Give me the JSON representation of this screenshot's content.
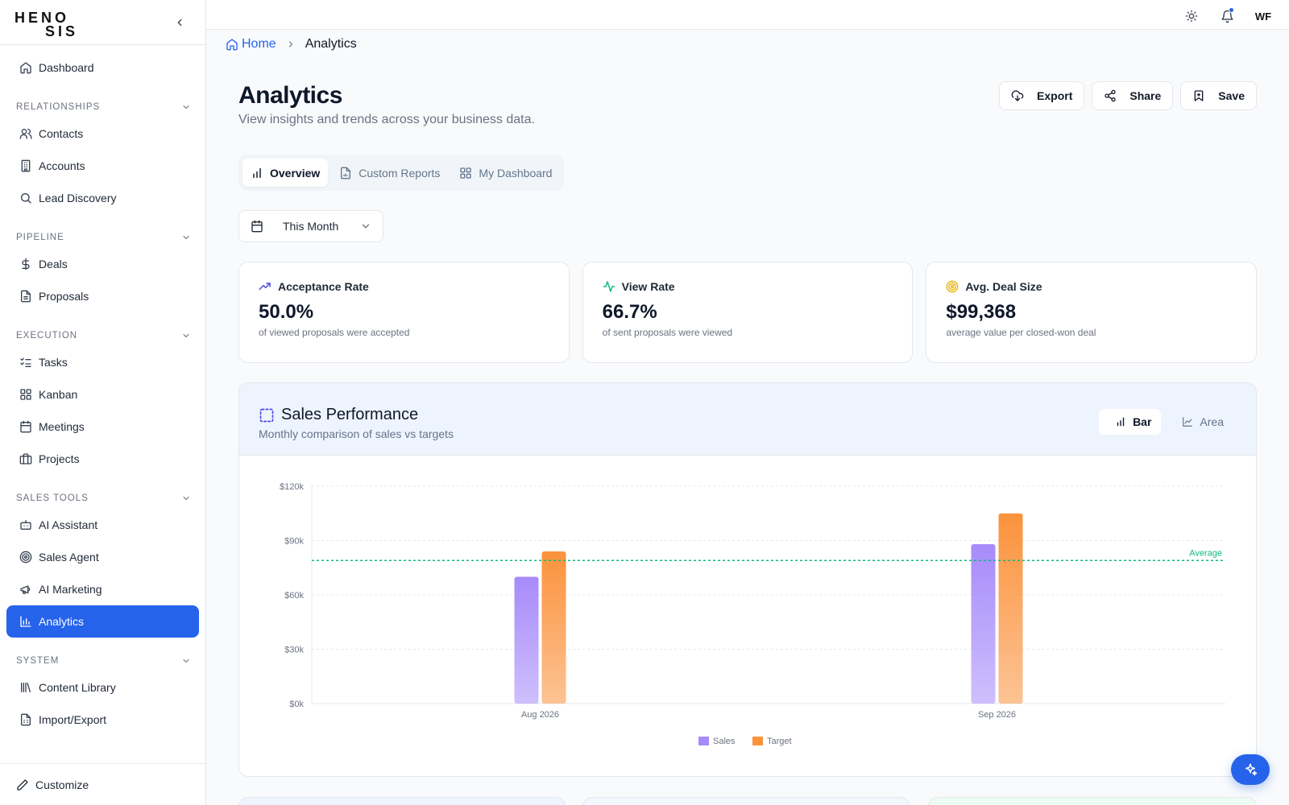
{
  "app": {
    "logo_line1": "HENO",
    "logo_line2": "SIS",
    "brand_color": "#1f5fd6",
    "accent": "#2563eb"
  },
  "sidebar": {
    "dashboard": "Dashboard",
    "sections": {
      "relationships": "RELATIONSHIPS",
      "pipeline": "PIPELINE",
      "execution": "EXECUTION",
      "sales_tools": "SALES TOOLS",
      "system": "SYSTEM"
    },
    "items": {
      "contacts": "Contacts",
      "accounts": "Accounts",
      "lead_discovery": "Lead Discovery",
      "deals": "Deals",
      "proposals": "Proposals",
      "tasks": "Tasks",
      "kanban": "Kanban",
      "meetings": "Meetings",
      "projects": "Projects",
      "ai_assistant": "AI Assistant",
      "sales_agent": "Sales Agent",
      "ai_marketing": "AI Marketing",
      "analytics": "Analytics",
      "content_library": "Content Library",
      "import_export": "Import/Export"
    },
    "customize": "Customize",
    "active_item": "Analytics"
  },
  "topbar": {
    "avatar_initials": "WF",
    "icons": [
      "sun-icon",
      "bell-icon"
    ]
  },
  "breadcrumb": {
    "home": "Home",
    "current": "Analytics"
  },
  "page": {
    "title": "Analytics",
    "subtitle": "View insights and trends across your business data."
  },
  "actions": {
    "export": "Export",
    "share": "Share",
    "save": "Save"
  },
  "tabs": {
    "overview": "Overview",
    "custom_reports": "Custom Reports",
    "my_dashboard": "My Dashboard",
    "active": "Overview"
  },
  "date_filter": {
    "value": "This Month"
  },
  "kpis": [
    {
      "label": "Acceptance Rate",
      "value": "50.0%",
      "note": "of viewed proposals were accepted",
      "icon": "trending-up-icon",
      "color": "#4f46e5"
    },
    {
      "label": "View Rate",
      "value": "66.7%",
      "note": "of sent proposals were viewed",
      "icon": "activity-icon",
      "color": "#10b981"
    },
    {
      "label": "Avg. Deal Size",
      "value": "$99,368",
      "note": "average value per closed-won deal",
      "icon": "target-icon",
      "color": "#eab308"
    }
  ],
  "chart": {
    "title": "Sales Performance",
    "subtitle": "Monthly comparison of sales vs targets",
    "toggle": {
      "bar": "Bar",
      "area": "Area",
      "active": "Bar"
    }
  },
  "chart_data": {
    "type": "bar",
    "categories": [
      "Aug 2026",
      "Sep 2026"
    ],
    "series": [
      {
        "name": "Sales",
        "values": [
          70000,
          88000
        ],
        "color": "#a78bfa"
      },
      {
        "name": "Target",
        "values": [
          84000,
          105000
        ],
        "color": "#fb923c"
      }
    ],
    "ylim": [
      0,
      120000
    ],
    "yticks": [
      "$0k",
      "$30k",
      "$60k",
      "$90k",
      "$120k"
    ],
    "ytick_values": [
      0,
      30000,
      60000,
      90000,
      120000
    ],
    "reference_line": {
      "label": "Average",
      "value": 79000,
      "color": "#10b981"
    },
    "grid": true,
    "legend": "bottom-center"
  }
}
